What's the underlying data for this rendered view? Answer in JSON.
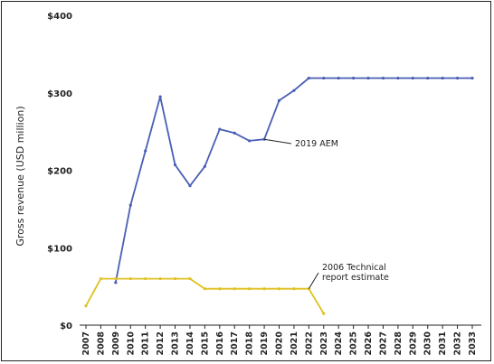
{
  "chart_data": {
    "type": "line",
    "title": "",
    "xlabel": "",
    "ylabel": "Gross revenue (USD million)",
    "ylim": [
      0,
      400
    ],
    "yticks": [
      "$400",
      "$300",
      "$200",
      "$100",
      "$0"
    ],
    "ytick_values": [
      400,
      300,
      200,
      100,
      0
    ],
    "x": [
      2007,
      2008,
      2009,
      2010,
      2011,
      2012,
      2013,
      2014,
      2015,
      2016,
      2017,
      2018,
      2019,
      2020,
      2021,
      2022,
      2023,
      2024,
      2025,
      2026,
      2027,
      2028,
      2029,
      2030,
      2031,
      2032,
      2033
    ],
    "x_labels": [
      "2007",
      "2008",
      "2009",
      "2010",
      "2011",
      "2012",
      "2013",
      "2014",
      "2015",
      "2016",
      "2017",
      "2018",
      "2019",
      "2020",
      "2021",
      "2022",
      "2023",
      "2024",
      "2025",
      "2026",
      "2027",
      "2028",
      "2029",
      "2030",
      "2031",
      "2032",
      "2033"
    ],
    "grid": false,
    "series": [
      {
        "name": "2019 AEM",
        "color": "#4a5fb4",
        "x": [
          2009,
          2010,
          2011,
          2012,
          2013,
          2014,
          2015,
          2016,
          2017,
          2018,
          2019,
          2020,
          2021,
          2022,
          2023,
          2024,
          2025,
          2026,
          2027,
          2028,
          2029,
          2030,
          2031,
          2032,
          2033
        ],
        "values": [
          55,
          155,
          225,
          295,
          207,
          180,
          205,
          253,
          248,
          238,
          240,
          290,
          303,
          319,
          319,
          319,
          319,
          319,
          319,
          319,
          319,
          319,
          319,
          319,
          319
        ]
      },
      {
        "name": "2006 Technical report estimate",
        "color": "#e0c020",
        "x": [
          2007,
          2008,
          2009,
          2010,
          2011,
          2012,
          2013,
          2014,
          2015,
          2016,
          2017,
          2018,
          2019,
          2020,
          2021,
          2022,
          2023
        ],
        "values": [
          25,
          60,
          60,
          60,
          60,
          60,
          60,
          60,
          47,
          47,
          47,
          47,
          47,
          47,
          47,
          47,
          15
        ]
      }
    ],
    "annotations": [
      {
        "text": "2019 AEM",
        "series": 0
      },
      {
        "text_lines": [
          "2006 Technical",
          "report estimate"
        ],
        "series": 1
      }
    ]
  }
}
